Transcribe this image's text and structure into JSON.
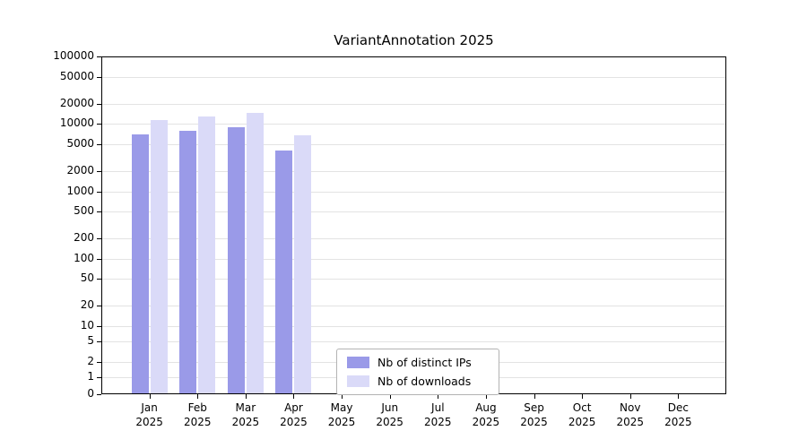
{
  "chart_data": {
    "type": "bar",
    "title": "VariantAnnotation 2025",
    "scale": "symlog",
    "grid": true,
    "legend_position": "lower center",
    "year_label": "2025",
    "categories": [
      "Jan",
      "Feb",
      "Mar",
      "Apr",
      "May",
      "Jun",
      "Jul",
      "Aug",
      "Sep",
      "Oct",
      "Nov",
      "Dec"
    ],
    "y_ticks": [
      100000,
      50000,
      20000,
      10000,
      5000,
      2000,
      1000,
      500,
      200,
      100,
      50,
      20,
      10,
      5,
      2,
      1,
      0
    ],
    "ylim": [
      0,
      100000
    ],
    "colors": {
      "distinct_ips": "#9a9ae8",
      "downloads": "#dadaf8",
      "gridline": "#e3e3e3"
    },
    "series": [
      {
        "name": "Nb of distinct IPs",
        "color": "#9a9ae8",
        "values": [
          7000,
          7800,
          8800,
          4000,
          null,
          null,
          null,
          null,
          null,
          null,
          null,
          null
        ]
      },
      {
        "name": "Nb of downloads",
        "color": "#dadaf8",
        "values": [
          11500,
          12700,
          14500,
          6800,
          null,
          null,
          null,
          null,
          null,
          null,
          null,
          null
        ]
      }
    ]
  }
}
